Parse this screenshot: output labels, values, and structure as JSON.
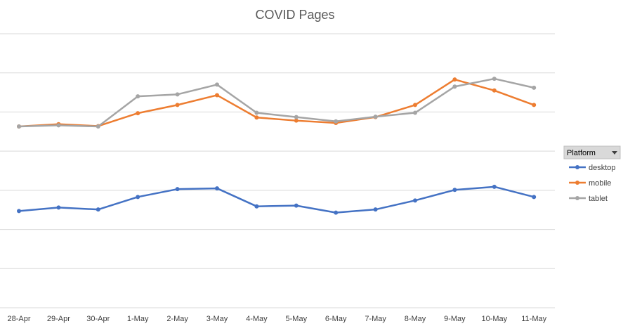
{
  "chart_data": {
    "type": "line",
    "title": "COVID Pages",
    "xlabel": "",
    "ylabel": "",
    "categories": [
      "28-Apr",
      "29-Apr",
      "30-Apr",
      "1-May",
      "2-May",
      "3-May",
      "4-May",
      "5-May",
      "6-May",
      "7-May",
      "8-May",
      "9-May",
      "10-May",
      "11-May"
    ],
    "ylim": [
      0,
      7
    ],
    "grid": true,
    "legend": {
      "title": "Platform",
      "placement": "right"
    },
    "series": [
      {
        "name": "desktop",
        "color": "#4472C4",
        "values": [
          2.47,
          2.56,
          2.51,
          2.83,
          3.03,
          3.05,
          2.59,
          2.61,
          2.43,
          2.51,
          2.74,
          3.01,
          3.09,
          2.83
        ]
      },
      {
        "name": "mobile",
        "color": "#ED7D31",
        "values": [
          4.63,
          4.69,
          4.64,
          4.97,
          5.18,
          5.43,
          4.86,
          4.78,
          4.72,
          4.87,
          5.18,
          5.83,
          5.55,
          5.18
        ]
      },
      {
        "name": "tablet",
        "color": "#A5A5A5",
        "values": [
          4.63,
          4.66,
          4.63,
          5.4,
          5.45,
          5.7,
          4.98,
          4.87,
          4.76,
          4.88,
          4.98,
          5.65,
          5.85,
          5.62
        ]
      }
    ]
  }
}
